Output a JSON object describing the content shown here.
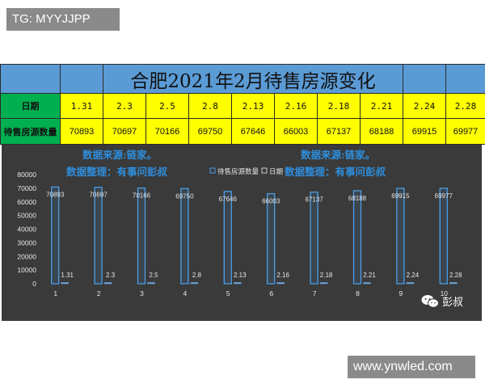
{
  "watermarks": {
    "top": "TG: MYYJJPP",
    "bottom": "www.ynwled.com"
  },
  "table": {
    "title": "合肥2021年2月待售房源变化",
    "date_header": "日期",
    "count_header": "待售房源数量",
    "dates": [
      "1.31",
      "2.3",
      "2.5",
      "2.8",
      "2.13",
      "2.16",
      "2.18",
      "2.21",
      "2.24",
      "2.28"
    ],
    "counts": [
      "70893",
      "70697",
      "70166",
      "69750",
      "67646",
      "66003",
      "67137",
      "68188",
      "69915",
      "69977"
    ]
  },
  "chart_data": {
    "type": "bar",
    "categories": [
      "1",
      "2",
      "3",
      "4",
      "5",
      "6",
      "7",
      "8",
      "9",
      "10"
    ],
    "series": [
      {
        "name": "待售房源数量",
        "values": [
          70893,
          70697,
          70166,
          69750,
          67646,
          66003,
          67137,
          68188,
          69915,
          69977
        ],
        "labels": [
          "70893",
          "70697",
          "70166",
          "69750",
          "67646",
          "66003",
          "67137",
          "68188",
          "69915",
          "69977"
        ]
      },
      {
        "name": "日期",
        "values": [
          1.31,
          2.3,
          2.5,
          2.8,
          2.13,
          2.16,
          2.18,
          2.21,
          2.24,
          2.28
        ],
        "labels": [
          "1.31",
          "2.3",
          "2.5",
          "2.8",
          "2.13",
          "2.16",
          "2.18",
          "2.21",
          "2.24",
          "2.28"
        ]
      }
    ],
    "yticks": [
      "0",
      "10000",
      "20000",
      "30000",
      "40000",
      "50000",
      "60000",
      "70000",
      "80000"
    ],
    "ylim": [
      0,
      80000
    ],
    "legend": "top-center",
    "grid": false,
    "colors": {
      "background": "#3a3a3a",
      "bar_stroke": "#4a9ee8",
      "text": "#e6e6e6"
    }
  },
  "notes": {
    "left_line1": "数据来源:链家。",
    "left_line2": "数据整理：有事问彭叔",
    "right_line1": "数据来源:链家。",
    "right_line2": "数据整理：有事问彭叔"
  },
  "brand": {
    "name": "彭叔",
    "icon": "wechat-icon"
  }
}
